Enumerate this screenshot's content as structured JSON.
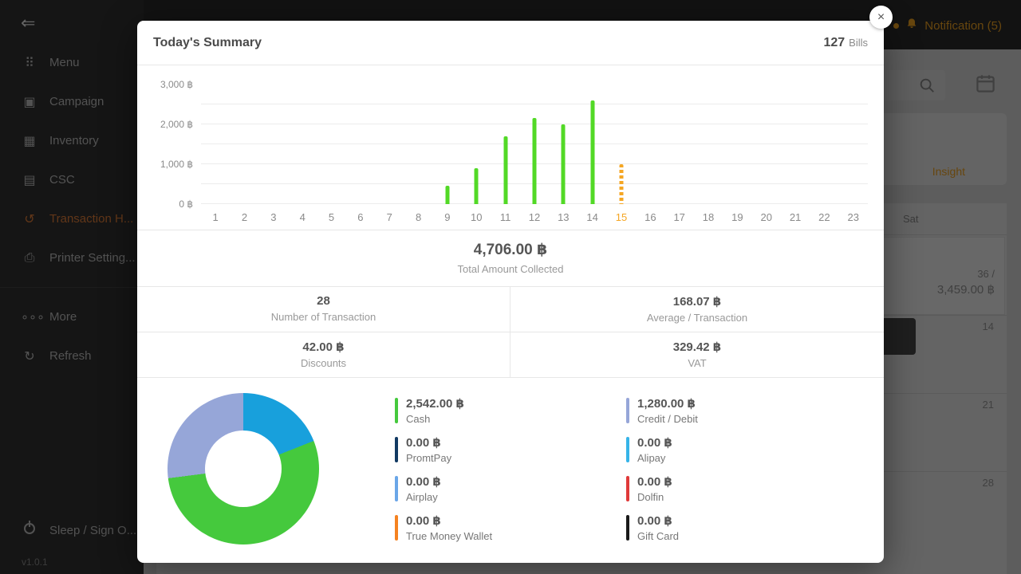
{
  "colors": {
    "accent_orange": "#f5a623",
    "bar_green": "#52d926",
    "donut_green": "#45c93d",
    "donut_blue": "#18a0dc",
    "donut_periwinkle": "#96a6d8"
  },
  "sidebar": {
    "items": [
      {
        "id": "menu",
        "label": "Menu",
        "icon": "menu-grid-icon",
        "glyph": "⠿",
        "group": 1,
        "active": false
      },
      {
        "id": "campaign",
        "label": "Campaign",
        "icon": "campaign-gift-icon",
        "glyph": "▣",
        "group": 1,
        "active": false
      },
      {
        "id": "inventory",
        "label": "Inventory",
        "icon": "inventory-box-icon",
        "glyph": "▦",
        "group": 1,
        "active": false
      },
      {
        "id": "csc",
        "label": "CSC",
        "icon": "csc-document-icon",
        "glyph": "▤",
        "group": 1,
        "active": false
      },
      {
        "id": "transaction-history",
        "label": "Transaction H...",
        "icon": "transaction-history-icon",
        "glyph": "↺",
        "group": 1,
        "active": true
      },
      {
        "id": "printer-setting",
        "label": "Printer Setting...",
        "icon": "printer-icon",
        "glyph": "⎙",
        "group": 1,
        "active": false
      },
      {
        "id": "more",
        "label": "More",
        "icon": "more-dots-icon",
        "glyph": "∘∘∘",
        "group": 2,
        "active": false
      },
      {
        "id": "refresh",
        "label": "Refresh",
        "icon": "refresh-icon",
        "glyph": "↻",
        "group": 2,
        "active": false
      }
    ],
    "bottom": {
      "label": "Sleep / Sign O...",
      "version": "v1.0.1"
    }
  },
  "topbar": {
    "notification_label": "Notification (5)"
  },
  "background_panel": {
    "insight_label": "Insight",
    "day_header": "Sat",
    "today_count": "36 /",
    "today_amount": "3,459.00 ฿",
    "day_numbers": [
      "14",
      "21",
      "28"
    ]
  },
  "modal": {
    "title": "Today's Summary",
    "bills_value": "127",
    "bills_label": "Bills",
    "total_value": "4,706.00 ฿",
    "total_label": "Total Amount Collected",
    "stats": [
      {
        "value": "28",
        "label": "Number of Transaction"
      },
      {
        "value": "168.07 ฿",
        "label": "Average / Transaction"
      },
      {
        "value": "42.00 ฿",
        "label": "Discounts"
      },
      {
        "value": "329.42 ฿",
        "label": "VAT"
      }
    ],
    "payments_left": [
      {
        "amount": "2,542.00 ฿",
        "label": "Cash",
        "color": "#45c93d"
      },
      {
        "amount": "0.00 ฿",
        "label": "PromtPay",
        "color": "#123a63"
      },
      {
        "amount": "0.00 ฿",
        "label": "Airplay",
        "color": "#6aa6e8"
      },
      {
        "amount": "0.00 ฿",
        "label": "True Money Wallet",
        "color": "#f58220"
      }
    ],
    "payments_right": [
      {
        "amount": "1,280.00 ฿",
        "label": "Credit / Debit",
        "color": "#96a6d8"
      },
      {
        "amount": "0.00 ฿",
        "label": "Alipay",
        "color": "#36b4e8"
      },
      {
        "amount": "0.00 ฿",
        "label": "Dolfin",
        "color": "#e03a3a"
      },
      {
        "amount": "0.00 ฿",
        "label": "Gift Card",
        "color": "#1a1a1a"
      }
    ]
  },
  "chart_data": [
    {
      "type": "bar",
      "description": "Hourly amount collected (฿) by hour of day",
      "x": [
        1,
        2,
        3,
        4,
        5,
        6,
        7,
        8,
        9,
        10,
        11,
        12,
        13,
        14,
        15,
        16,
        17,
        18,
        19,
        20,
        21,
        22,
        23
      ],
      "values": [
        0,
        0,
        0,
        0,
        0,
        0,
        0,
        0,
        450,
        900,
        1700,
        2150,
        2000,
        2600,
        1000,
        0,
        0,
        0,
        0,
        0,
        0,
        0,
        0
      ],
      "highlight_x": 15,
      "highlight_style": "dashed-orange-current-hour",
      "ylim": [
        0,
        3000
      ],
      "ytick_labels": [
        "3,000 ฿",
        "2,000 ฿",
        "1,000 ฿",
        "0 ฿"
      ],
      "grid": true,
      "bar_color": "#52d926"
    },
    {
      "type": "donut",
      "description": "Payment method share, segments clockwise from top",
      "segments": [
        {
          "color": "#18a0dc",
          "fraction": 0.19
        },
        {
          "color": "#45c93d",
          "fraction": 0.54
        },
        {
          "color": "#96a6d8",
          "fraction": 0.27
        }
      ]
    }
  ]
}
